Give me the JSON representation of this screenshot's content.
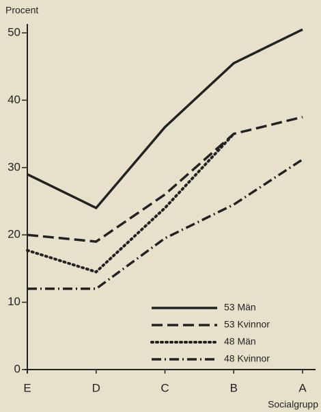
{
  "chart_data": {
    "type": "line",
    "y_axis_label": "Procent",
    "x_axis_label": "Socialgrupp",
    "categories": [
      "E",
      "D",
      "C",
      "B",
      "A"
    ],
    "series": [
      {
        "name": "53 Män",
        "color": "#222222",
        "style": "solid",
        "values": [
          29,
          24,
          36,
          45.5,
          50.5
        ]
      },
      {
        "name": "53 Kvinnor",
        "color": "#222222",
        "style": "dashed",
        "values": [
          20,
          19,
          26,
          35,
          37.5
        ]
      },
      {
        "name": "48 Män",
        "color": "#222222",
        "style": "dotted",
        "values": [
          17.7,
          14.5,
          24,
          35,
          null
        ]
      },
      {
        "name": "48 Kvinnor",
        "color": "#222222",
        "style": "dashdot",
        "values": [
          12,
          12,
          19.5,
          24.5,
          31.2
        ]
      }
    ],
    "ylim": [
      0,
      50
    ],
    "yticks": [
      0,
      10,
      20,
      30,
      40,
      50
    ],
    "legend": "lower right"
  }
}
